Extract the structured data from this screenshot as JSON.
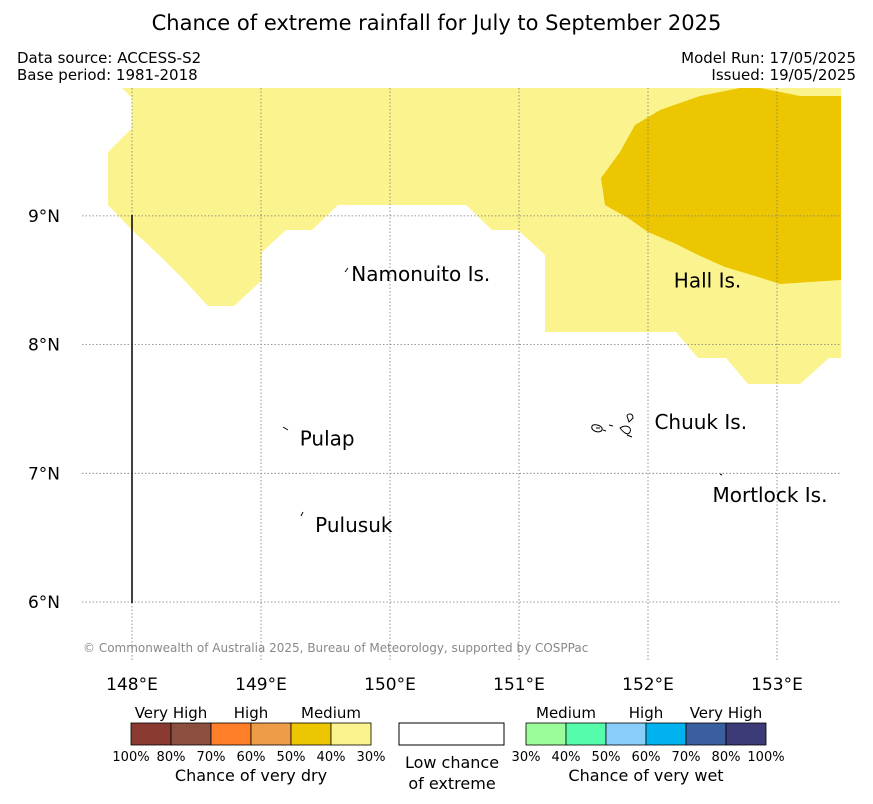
{
  "title": "Chance of extreme rainfall for July to September 2025",
  "header": {
    "data_source": "Data source: ACCESS-S2",
    "base_period": "Base period: 1981-2018",
    "model_run": "Model Run: 17/05/2025",
    "issued": "Issued: 19/05/2025"
  },
  "map": {
    "lat_ticks": [
      {
        "label": "9°N",
        "value": 9
      },
      {
        "label": "8°N",
        "value": 8
      },
      {
        "label": "7°N",
        "value": 7
      },
      {
        "label": "6°N",
        "value": 6
      }
    ],
    "lon_ticks": [
      {
        "label": "148°E",
        "value": 148
      },
      {
        "label": "149°E",
        "value": 149
      },
      {
        "label": "150°E",
        "value": 150
      },
      {
        "label": "151°E",
        "value": 151
      },
      {
        "label": "152°E",
        "value": 152
      },
      {
        "label": "153°E",
        "value": 153
      }
    ],
    "places": [
      {
        "name": "Namonuito Is.",
        "lon": 149.7,
        "lat": 8.55
      },
      {
        "name": "Hall Is.",
        "lon": 152.2,
        "lat": 8.5
      },
      {
        "name": "Chuuk Is.",
        "lon": 152.05,
        "lat": 7.4
      },
      {
        "name": "Pulap",
        "lon": 149.3,
        "lat": 7.27
      },
      {
        "name": "Mortlock Is.",
        "lon": 152.5,
        "lat": 6.83
      },
      {
        "name": "Pulusuk",
        "lon": 149.42,
        "lat": 6.6
      }
    ],
    "copyright": "© Commonwealth of Australia 2025, Bureau of Meteorology, supported by COSPPac",
    "colors": {
      "land_line": "#000000",
      "category_30_40_dry": "#fbf38e",
      "category_40_50_dry": "#ecc600"
    }
  },
  "legend": {
    "dry": {
      "title": "Chance of very dry",
      "headings": [
        "Very High",
        "High",
        "Medium"
      ],
      "colors": [
        "#8b3a32",
        "#8a4f3f",
        "#ff7f28",
        "#ee9c48",
        "#ecc600",
        "#fbf38e"
      ],
      "ticks": [
        "100%",
        "80%",
        "70%",
        "60%",
        "50%",
        "40%",
        "30%"
      ]
    },
    "low": {
      "line1": "Low chance",
      "line2": "of extreme"
    },
    "wet": {
      "title": "Chance of very wet",
      "headings": [
        "Medium",
        "High",
        "Very High"
      ],
      "colors": [
        "#9afd99",
        "#55fdaa",
        "#87cefa",
        "#00b2ee",
        "#3a5f9f",
        "#3d3a78"
      ],
      "ticks": [
        "30%",
        "40%",
        "50%",
        "60%",
        "70%",
        "80%",
        "100%"
      ]
    }
  }
}
